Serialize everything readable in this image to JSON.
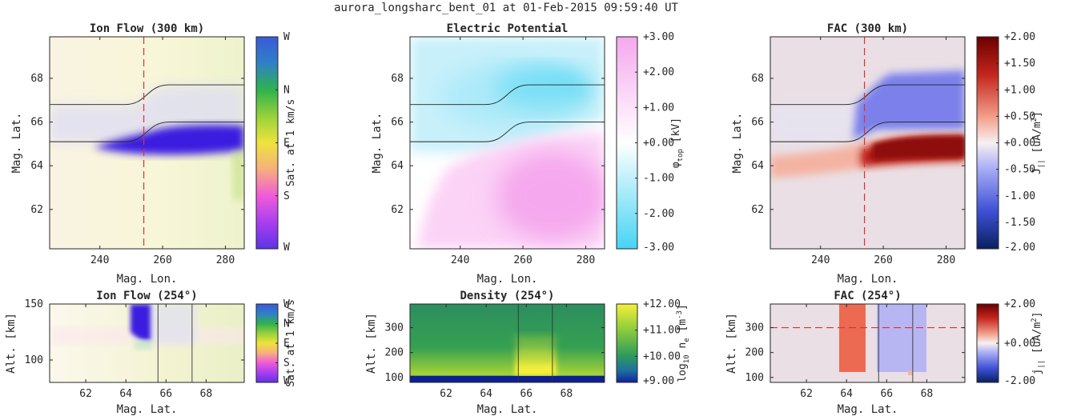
{
  "figure_title": "aurora_longsharc_bent_01 at 01-Feb-2015 09:59:40 UT",
  "chart_data": [
    {
      "id": "ion-flow-300",
      "type": "heatmap",
      "title": "Ion Flow (300 km)",
      "xlabel": "Mag. Lon.",
      "ylabel": "Mag. Lat.",
      "xlim": [
        224,
        286
      ],
      "ylim": [
        60.2,
        69.9
      ],
      "xticks": [
        240,
        260,
        280
      ],
      "yticks": [
        62,
        64,
        66,
        68
      ],
      "cut_lon": 254,
      "arc_south": {
        "lon": [
          224,
          248,
          262,
          286
        ],
        "lat": [
          65.1,
          65.1,
          66.0,
          66.0
        ]
      },
      "arc_north": {
        "lon": [
          224,
          248,
          262,
          286
        ],
        "lat": [
          66.8,
          66.8,
          67.7,
          67.7
        ]
      },
      "colorbar": {
        "label": "Sat. at 1 km/s",
        "ticks": [
          "W",
          "N",
          "E",
          "S",
          "W"
        ]
      }
    },
    {
      "id": "electric-potential",
      "type": "heatmap",
      "title": "Electric Potential",
      "xlabel": "Mag. Lon.",
      "ylabel": "Mag. Lat.",
      "xlim": [
        224,
        286
      ],
      "ylim": [
        60.2,
        69.9
      ],
      "xticks": [
        240,
        260,
        280
      ],
      "yticks": [
        62,
        64,
        66,
        68
      ],
      "arc_south": {
        "lon": [
          224,
          248,
          262,
          286
        ],
        "lat": [
          65.1,
          65.1,
          66.0,
          66.0
        ]
      },
      "arc_north": {
        "lon": [
          224,
          248,
          262,
          286
        ],
        "lat": [
          66.8,
          66.8,
          67.7,
          67.7
        ]
      },
      "colorbar": {
        "label": "φtop [kV]",
        "ticks": [
          "+3.00",
          "+2.00",
          "+1.00",
          "+0.00",
          "-1.00",
          "-2.00",
          "-3.00"
        ]
      }
    },
    {
      "id": "fac-300",
      "type": "heatmap",
      "title": "FAC (300 km)",
      "xlabel": "Mag. Lon.",
      "ylabel": "Mag. Lat.",
      "xlim": [
        224,
        286
      ],
      "ylim": [
        60.2,
        69.9
      ],
      "xticks": [
        240,
        260,
        280
      ],
      "yticks": [
        62,
        64,
        66,
        68
      ],
      "cut_lon": 254,
      "arc_south": {
        "lon": [
          224,
          248,
          262,
          286
        ],
        "lat": [
          65.1,
          65.1,
          66.0,
          66.0
        ]
      },
      "arc_north": {
        "lon": [
          224,
          248,
          262,
          286
        ],
        "lat": [
          66.8,
          66.8,
          67.7,
          67.7
        ]
      },
      "colorbar": {
        "label": "J|| [uA/m²]",
        "ticks": [
          "+2.00",
          "+1.50",
          "+1.00",
          "+0.50",
          "+0.00",
          "-0.50",
          "-1.00",
          "-1.50",
          "-2.00"
        ]
      }
    },
    {
      "id": "ion-flow-254",
      "type": "heatmap",
      "title": "Ion Flow (254°)",
      "xlabel": "Mag. Lat.",
      "ylabel": "Alt. [km]",
      "xlim": [
        60.2,
        69.9
      ],
      "ylim": [
        80,
        150
      ],
      "xticks": [
        62,
        64,
        66,
        68
      ],
      "yticks": [
        100,
        150
      ],
      "arc_lat": [
        65.6,
        67.3
      ],
      "colorbar": {
        "label": "Sat. at 1 km/s",
        "ticks": [
          "W",
          "N",
          "E",
          "S",
          "W"
        ]
      }
    },
    {
      "id": "density-254",
      "type": "heatmap",
      "title": "Density (254°)",
      "xlabel": "Mag. Lat.",
      "ylabel": "Alt. [km]",
      "xlim": [
        60.2,
        69.9
      ],
      "ylim": [
        80,
        395
      ],
      "xticks": [
        62,
        64,
        66,
        68
      ],
      "yticks": [
        100,
        200,
        300
      ],
      "arc_lat": [
        65.6,
        67.3
      ],
      "colorbar": {
        "label": "log10 ne [m⁻³]",
        "ticks": [
          "+12.00",
          "+11.00",
          "+10.00",
          "+9.00"
        ]
      }
    },
    {
      "id": "fac-254",
      "type": "heatmap",
      "title": "FAC (254°)",
      "xlabel": "Mag. Lat.",
      "ylabel": "Alt. [km]",
      "xlim": [
        60.2,
        69.9
      ],
      "ylim": [
        80,
        395
      ],
      "xticks": [
        62,
        64,
        66,
        68
      ],
      "yticks": [
        100,
        200,
        300
      ],
      "arc_lat": [
        65.6,
        67.3
      ],
      "ref_alt": 300,
      "colorbar": {
        "label": "j|| [uA/m²]",
        "ticks": [
          "+2.00",
          "+0.00",
          "-2.00"
        ]
      }
    }
  ]
}
